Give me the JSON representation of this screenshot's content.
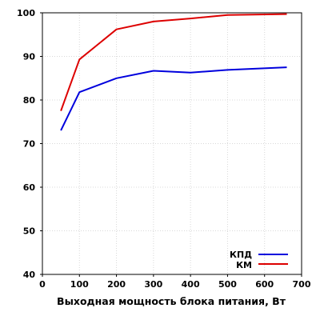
{
  "chart_data": {
    "type": "line",
    "xlabel": "Выходная мощность блока питания, Вт",
    "ylabel": "",
    "xlim": [
      0,
      700
    ],
    "ylim": [
      40,
      100
    ],
    "x_ticks": [
      "0",
      "100",
      "200",
      "300",
      "400",
      "500",
      "600",
      "700"
    ],
    "y_ticks": [
      "40",
      "50",
      "60",
      "70",
      "80",
      "90",
      "100"
    ],
    "grid": true,
    "legend_position": "bottom-right",
    "series": [
      {
        "name": "КПД",
        "color": "#0000dd",
        "points": [
          [
            50,
            73
          ],
          [
            100,
            81.8
          ],
          [
            200,
            85
          ],
          [
            300,
            86.7
          ],
          [
            400,
            86.3
          ],
          [
            500,
            86.9
          ],
          [
            660,
            87.5
          ]
        ]
      },
      {
        "name": "КМ",
        "color": "#dd0000",
        "points": [
          [
            50,
            77.5
          ],
          [
            100,
            89.3
          ],
          [
            200,
            96.2
          ],
          [
            300,
            98.0
          ],
          [
            400,
            98.7
          ],
          [
            500,
            99.5
          ],
          [
            660,
            99.7
          ]
        ]
      }
    ]
  }
}
